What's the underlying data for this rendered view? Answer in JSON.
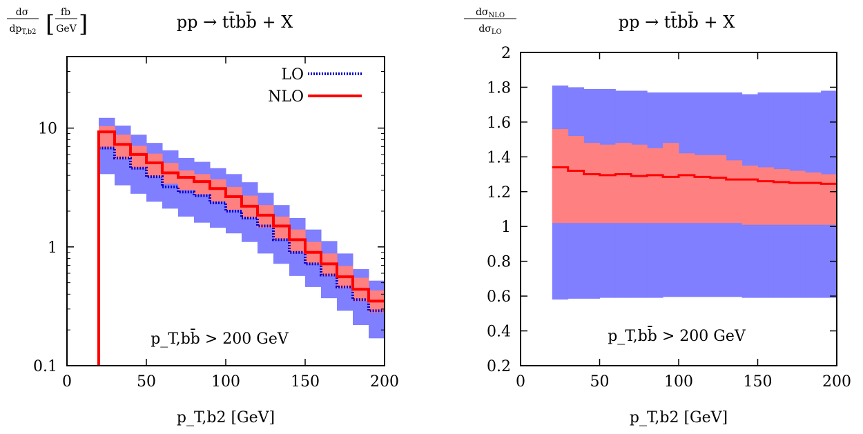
{
  "chart_data": [
    {
      "type": "line",
      "panel": "left",
      "title": "pp → tt̄bb̄ + X",
      "ylabel": "dσ/dp_T,b2 [fb/GeV]",
      "xlabel": "p_T,b2 [GeV]",
      "ylog": true,
      "xlim": [
        0,
        200
      ],
      "ylim": [
        0.1,
        40
      ],
      "x_ticks": [
        0,
        50,
        100,
        150,
        200
      ],
      "y_ticks": [
        "0.1",
        "1",
        "10"
      ],
      "cut_annotation": "p_T,bb̄ > 200 GeV",
      "legend_position": "top-right",
      "bin_edges": [
        20,
        30,
        40,
        50,
        60,
        70,
        80,
        90,
        100,
        110,
        120,
        130,
        140,
        150,
        160,
        170,
        180,
        190,
        200
      ],
      "series": [
        {
          "name": "LO",
          "color": "#0000cc",
          "style": "dotted",
          "values": [
            6.8,
            5.6,
            4.6,
            3.9,
            3.2,
            2.9,
            2.7,
            2.35,
            2.0,
            1.75,
            1.5,
            1.15,
            0.9,
            0.72,
            0.58,
            0.46,
            0.36,
            0.29
          ],
          "band_low": [
            4.1,
            3.3,
            2.8,
            2.4,
            2.1,
            1.8,
            1.6,
            1.45,
            1.3,
            1.1,
            0.88,
            0.72,
            0.57,
            0.46,
            0.37,
            0.29,
            0.22,
            0.17
          ],
          "band_high": [
            12.2,
            10.5,
            8.8,
            7.5,
            6.5,
            5.6,
            5.2,
            4.6,
            4.1,
            3.5,
            2.85,
            2.25,
            1.75,
            1.4,
            1.12,
            0.88,
            0.65,
            0.52
          ],
          "band_color": "#7f7fff"
        },
        {
          "name": "NLO",
          "color": "#ff0000",
          "style": "solid",
          "values": [
            9.3,
            7.3,
            6.0,
            5.1,
            4.2,
            3.85,
            3.55,
            3.1,
            2.65,
            2.2,
            1.85,
            1.5,
            1.15,
            0.9,
            0.72,
            0.56,
            0.44,
            0.35
          ],
          "band_low": [
            6.8,
            5.5,
            4.6,
            3.9,
            3.4,
            3.0,
            2.75,
            2.4,
            2.05,
            1.75,
            1.45,
            1.15,
            0.9,
            0.72,
            0.57,
            0.45,
            0.35,
            0.28
          ],
          "band_high": [
            10.4,
            8.8,
            7.1,
            6.1,
            5.1,
            4.4,
            4.1,
            3.7,
            3.2,
            2.7,
            2.25,
            1.8,
            1.4,
            1.1,
            0.88,
            0.69,
            0.55,
            0.43
          ],
          "band_color": "#ff8080"
        }
      ]
    },
    {
      "type": "line",
      "panel": "right",
      "title": "pp → tt̄bb̄ + X",
      "ylabel": "dσ_NLO/dσ_LO",
      "xlabel": "p_T,b2 [GeV]",
      "xlim": [
        0,
        200
      ],
      "ylim": [
        0.2,
        2
      ],
      "x_ticks": [
        0,
        50,
        100,
        150,
        200
      ],
      "y_ticks": [
        "0.2",
        "0.4",
        "0.6",
        "0.8",
        "1",
        "1.2",
        "1.4",
        "1.6",
        "1.8",
        "2"
      ],
      "cut_annotation": "p_T,bb̄ > 200 GeV",
      "bin_edges": [
        20,
        30,
        40,
        50,
        60,
        70,
        80,
        90,
        100,
        110,
        120,
        130,
        140,
        150,
        160,
        170,
        180,
        190,
        200
      ],
      "series": [
        {
          "name": "",
          "color": "#ff0000",
          "style": "solid",
          "values": [
            1.34,
            1.32,
            1.3,
            1.295,
            1.3,
            1.29,
            1.295,
            1.285,
            1.295,
            1.285,
            1.28,
            1.27,
            1.27,
            1.26,
            1.255,
            1.25,
            1.25,
            1.245
          ],
          "band_low": [
            1.02,
            1.02,
            1.02,
            1.02,
            1.02,
            1.02,
            1.02,
            1.02,
            1.02,
            1.02,
            1.02,
            1.02,
            1.01,
            1.01,
            1.01,
            1.01,
            1.01,
            1.01
          ],
          "band_high": [
            1.56,
            1.52,
            1.48,
            1.47,
            1.48,
            1.47,
            1.45,
            1.48,
            1.42,
            1.41,
            1.41,
            1.38,
            1.35,
            1.34,
            1.33,
            1.32,
            1.31,
            1.3
          ],
          "band_color": "#ff8080"
        },
        {
          "name": "",
          "color": "#7f7fff",
          "style": "band",
          "values": [],
          "band_low": [
            0.58,
            0.585,
            0.585,
            0.59,
            0.59,
            0.59,
            0.59,
            0.595,
            0.595,
            0.595,
            0.595,
            0.595,
            0.59,
            0.59,
            0.59,
            0.59,
            0.59,
            0.59
          ],
          "band_high": [
            1.81,
            1.8,
            1.79,
            1.79,
            1.78,
            1.78,
            1.77,
            1.77,
            1.77,
            1.77,
            1.77,
            1.77,
            1.76,
            1.77,
            1.77,
            1.77,
            1.77,
            1.78
          ],
          "band_color": "#7f7fff"
        }
      ]
    }
  ]
}
